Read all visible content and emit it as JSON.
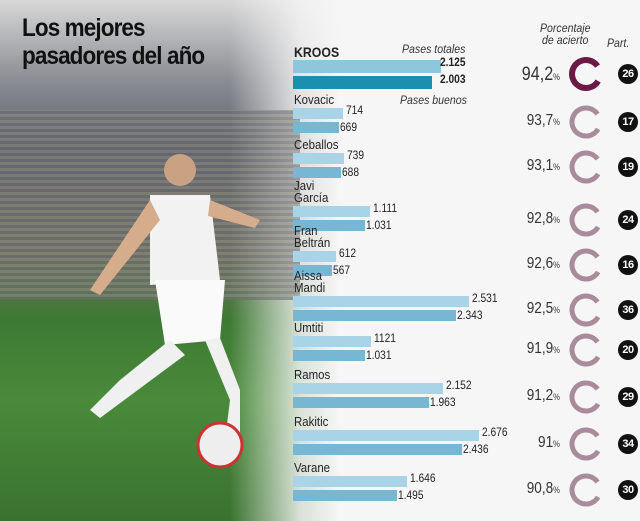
{
  "title": [
    "Los mejores",
    "pasadores del año"
  ],
  "headers": {
    "total": "Pases totales",
    "good": "Pases buenos",
    "pct_line1": "Porcentaje",
    "pct_line2": "de acierto",
    "part": "Part."
  },
  "colors": {
    "total_bar": "#a9d3e6",
    "good_bar": "#78b7d3",
    "highlight_total": "#8ec6dc",
    "highlight_good": "#1a8fae",
    "highlight_donut": "#6b1a45",
    "donut": "#a98b9b"
  },
  "chart_data": {
    "type": "bar",
    "categories": [
      "KROOS",
      "Kovacic",
      "Ceballos",
      "Javi García",
      "Fran Beltrán",
      "Aissa Mandi",
      "Umtiti",
      "Ramos",
      "Rakitic",
      "Varane"
    ],
    "series": [
      {
        "name": "Pases totales",
        "values": [
          2125,
          714,
          739,
          1111,
          612,
          2531,
          1121,
          2152,
          2676,
          1646
        ],
        "labels": [
          "2.125",
          "714",
          "739",
          "1.111",
          "612",
          "2.531",
          "1121",
          "2.152",
          "2.676",
          "1.646"
        ]
      },
      {
        "name": "Pases buenos",
        "values": [
          2003,
          669,
          688,
          1031,
          567,
          2343,
          1031,
          1963,
          2436,
          1495
        ],
        "labels": [
          "2.003",
          "669",
          "688",
          "1.031",
          "567",
          "2.343",
          "1.031",
          "1.963",
          "2.436",
          "1.495"
        ]
      }
    ],
    "accuracy": [
      "94,2",
      "93,7",
      "93,1",
      "92,8",
      "92,6",
      "92,5",
      "91,9",
      "91,2",
      "91",
      "90,8"
    ],
    "accuracy_values": [
      94.2,
      93.7,
      93.1,
      92.8,
      92.6,
      92.5,
      91.9,
      91.2,
      91,
      90.8
    ],
    "matches": [
      "26",
      "17",
      "19",
      "24",
      "16",
      "36",
      "20",
      "29",
      "34",
      "30"
    ],
    "percent_sign": "%"
  }
}
